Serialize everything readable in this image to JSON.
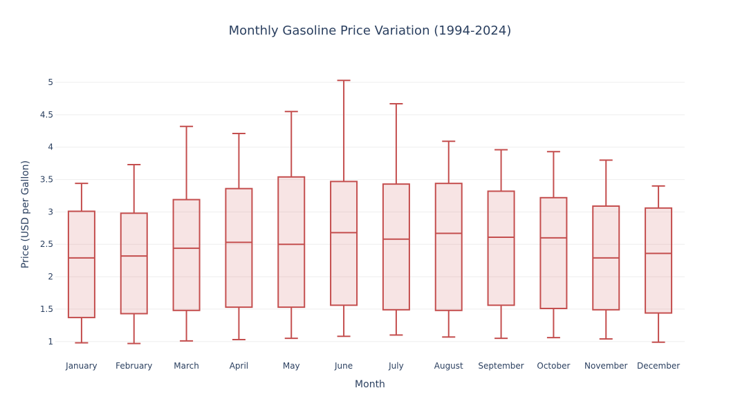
{
  "chart_data": {
    "type": "box",
    "title": "Monthly Gasoline Price Variation (1994-2024)",
    "xlabel": "Month",
    "ylabel": "Price (USD per Gallon)",
    "categories": [
      "January",
      "February",
      "March",
      "April",
      "May",
      "June",
      "July",
      "August",
      "September",
      "October",
      "November",
      "December"
    ],
    "ylim": [
      0.88,
      5.15
    ],
    "yticks": [
      1,
      1.5,
      2,
      2.5,
      3,
      3.5,
      4,
      4.5,
      5
    ],
    "ytick_labels": [
      "1",
      "1.5",
      "2",
      "2.5",
      "3",
      "3.5",
      "4",
      "4.5",
      "5"
    ],
    "grid": true,
    "legend": "none",
    "colors": {
      "box_fill": "#c8494926",
      "box_line": "#c44e4e"
    },
    "series": [
      {
        "boxes": [
          {
            "min": 0.98,
            "q1": 1.37,
            "median": 2.29,
            "q3": 3.01,
            "max": 3.44
          },
          {
            "min": 0.97,
            "q1": 1.43,
            "median": 2.32,
            "q3": 2.98,
            "max": 3.73
          },
          {
            "min": 1.01,
            "q1": 1.48,
            "median": 2.44,
            "q3": 3.19,
            "max": 4.32
          },
          {
            "min": 1.03,
            "q1": 1.53,
            "median": 2.53,
            "q3": 3.36,
            "max": 4.21
          },
          {
            "min": 1.05,
            "q1": 1.53,
            "median": 2.5,
            "q3": 3.54,
            "max": 4.55
          },
          {
            "min": 1.08,
            "q1": 1.56,
            "median": 2.68,
            "q3": 3.47,
            "max": 5.03
          },
          {
            "min": 1.1,
            "q1": 1.49,
            "median": 2.58,
            "q3": 3.43,
            "max": 4.67
          },
          {
            "min": 1.07,
            "q1": 1.48,
            "median": 2.67,
            "q3": 3.44,
            "max": 4.09
          },
          {
            "min": 1.05,
            "q1": 1.56,
            "median": 2.61,
            "q3": 3.32,
            "max": 3.96
          },
          {
            "min": 1.06,
            "q1": 1.51,
            "median": 2.6,
            "q3": 3.22,
            "max": 3.93
          },
          {
            "min": 1.04,
            "q1": 1.49,
            "median": 2.29,
            "q3": 3.09,
            "max": 3.8
          },
          {
            "min": 0.99,
            "q1": 1.44,
            "median": 2.36,
            "q3": 3.06,
            "max": 3.4
          }
        ]
      }
    ]
  }
}
